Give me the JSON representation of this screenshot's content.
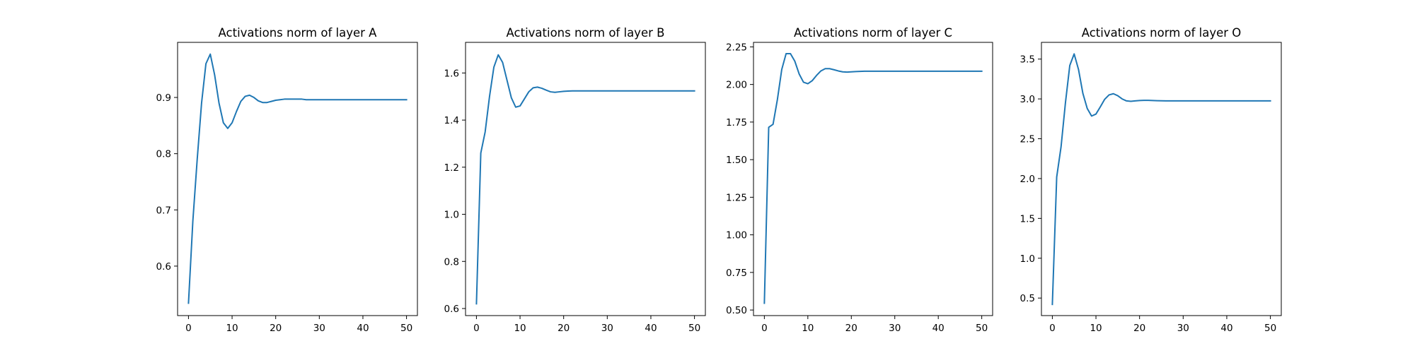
{
  "chart_data": [
    {
      "type": "line",
      "title": "Activations norm of layer A",
      "xlabel": "",
      "ylabel": "",
      "xlim": [
        -2.5,
        52.5
      ],
      "ylim": [
        0.512,
        0.998
      ],
      "xticks": [
        0,
        10,
        20,
        30,
        40,
        50
      ],
      "yticks": [
        0.6,
        0.7,
        0.8,
        0.9
      ],
      "ytick_labels": [
        "0.6",
        "0.7",
        "0.8",
        "0.9"
      ],
      "color": "#1f77b4",
      "series": [
        {
          "name": "layer A",
          "x": [
            0,
            1,
            2,
            3,
            4,
            5,
            6,
            7,
            8,
            9,
            10,
            11,
            12,
            13,
            14,
            15,
            16,
            17,
            18,
            19,
            20,
            21,
            22,
            23,
            24,
            25,
            26,
            27,
            28,
            29,
            30,
            31,
            32,
            33,
            34,
            35,
            36,
            37,
            38,
            39,
            40,
            41,
            42,
            43,
            44,
            45,
            46,
            47,
            48,
            49,
            50
          ],
          "values": [
            0.534,
            0.68,
            0.79,
            0.89,
            0.96,
            0.977,
            0.94,
            0.89,
            0.855,
            0.845,
            0.855,
            0.875,
            0.893,
            0.902,
            0.904,
            0.9,
            0.894,
            0.891,
            0.891,
            0.893,
            0.895,
            0.896,
            0.897,
            0.897,
            0.897,
            0.897,
            0.897,
            0.896,
            0.896,
            0.896,
            0.896,
            0.896,
            0.896,
            0.896,
            0.896,
            0.896,
            0.896,
            0.896,
            0.896,
            0.896,
            0.896,
            0.896,
            0.896,
            0.896,
            0.896,
            0.896,
            0.896,
            0.896,
            0.896,
            0.896,
            0.896
          ]
        }
      ]
    },
    {
      "type": "line",
      "title": "Activations norm of layer B",
      "xlabel": "",
      "ylabel": "",
      "xlim": [
        -2.5,
        52.5
      ],
      "ylim": [
        0.57,
        1.73
      ],
      "xticks": [
        0,
        10,
        20,
        30,
        40,
        50
      ],
      "yticks": [
        0.6,
        0.8,
        1.0,
        1.2,
        1.4,
        1.6
      ],
      "ytick_labels": [
        "0.6",
        "0.8",
        "1.0",
        "1.2",
        "1.4",
        "1.6"
      ],
      "color": "#1f77b4",
      "series": [
        {
          "name": "layer B",
          "x": [
            0,
            1,
            2,
            3,
            4,
            5,
            6,
            7,
            8,
            9,
            10,
            11,
            12,
            13,
            14,
            15,
            16,
            17,
            18,
            19,
            20,
            21,
            22,
            23,
            24,
            25,
            26,
            27,
            28,
            29,
            30,
            31,
            32,
            33,
            34,
            35,
            36,
            37,
            38,
            39,
            40,
            41,
            42,
            43,
            44,
            45,
            46,
            47,
            48,
            49,
            50
          ],
          "values": [
            0.62,
            1.26,
            1.35,
            1.5,
            1.625,
            1.677,
            1.645,
            1.57,
            1.495,
            1.455,
            1.46,
            1.49,
            1.52,
            1.537,
            1.54,
            1.535,
            1.527,
            1.52,
            1.518,
            1.52,
            1.522,
            1.523,
            1.524,
            1.524,
            1.524,
            1.524,
            1.524,
            1.524,
            1.524,
            1.524,
            1.524,
            1.524,
            1.524,
            1.524,
            1.524,
            1.524,
            1.524,
            1.524,
            1.524,
            1.524,
            1.524,
            1.524,
            1.524,
            1.524,
            1.524,
            1.524,
            1.524,
            1.524,
            1.524,
            1.524,
            1.524
          ]
        }
      ]
    },
    {
      "type": "line",
      "title": "Activations norm of layer C",
      "xlabel": "",
      "ylabel": "",
      "xlim": [
        -2.5,
        52.5
      ],
      "ylim": [
        0.463,
        2.28
      ],
      "xticks": [
        0,
        10,
        20,
        30,
        40,
        50
      ],
      "yticks": [
        0.5,
        0.75,
        1.0,
        1.25,
        1.5,
        1.75,
        2.0,
        2.25
      ],
      "ytick_labels": [
        "0.50",
        "0.75",
        "1.00",
        "1.25",
        "1.50",
        "1.75",
        "2.00",
        "2.25"
      ],
      "color": "#1f77b4",
      "series": [
        {
          "name": "layer C",
          "x": [
            0,
            1,
            2,
            3,
            4,
            5,
            6,
            7,
            8,
            9,
            10,
            11,
            12,
            13,
            14,
            15,
            16,
            17,
            18,
            19,
            20,
            21,
            22,
            23,
            24,
            25,
            26,
            27,
            28,
            29,
            30,
            31,
            32,
            33,
            34,
            35,
            36,
            37,
            38,
            39,
            40,
            41,
            42,
            43,
            44,
            45,
            46,
            47,
            48,
            49,
            50
          ],
          "values": [
            0.545,
            1.715,
            1.735,
            1.9,
            2.1,
            2.205,
            2.205,
            2.155,
            2.07,
            2.015,
            2.005,
            2.025,
            2.06,
            2.09,
            2.105,
            2.105,
            2.098,
            2.09,
            2.084,
            2.082,
            2.084,
            2.086,
            2.087,
            2.088,
            2.088,
            2.088,
            2.088,
            2.088,
            2.088,
            2.088,
            2.088,
            2.088,
            2.088,
            2.088,
            2.088,
            2.088,
            2.088,
            2.088,
            2.088,
            2.088,
            2.088,
            2.088,
            2.088,
            2.088,
            2.088,
            2.088,
            2.088,
            2.088,
            2.088,
            2.088,
            2.088
          ]
        }
      ]
    },
    {
      "type": "line",
      "title": "Activations norm of layer O",
      "xlabel": "",
      "ylabel": "",
      "xlim": [
        -2.5,
        52.5
      ],
      "ylim": [
        0.28,
        3.71
      ],
      "xticks": [
        0,
        10,
        20,
        30,
        40,
        50
      ],
      "yticks": [
        0.5,
        1.0,
        1.5,
        2.0,
        2.5,
        3.0,
        3.5
      ],
      "ytick_labels": [
        "0.5",
        "1.0",
        "1.5",
        "2.0",
        "2.5",
        "3.0",
        "3.5"
      ],
      "color": "#1f77b4",
      "series": [
        {
          "name": "layer O",
          "x": [
            0,
            1,
            2,
            3,
            4,
            5,
            6,
            7,
            8,
            9,
            10,
            11,
            12,
            13,
            14,
            15,
            16,
            17,
            18,
            19,
            20,
            21,
            22,
            23,
            24,
            25,
            26,
            27,
            28,
            29,
            30,
            31,
            32,
            33,
            34,
            35,
            36,
            37,
            38,
            39,
            40,
            41,
            42,
            43,
            44,
            45,
            46,
            47,
            48,
            49,
            50
          ],
          "values": [
            0.42,
            2.02,
            2.4,
            2.95,
            3.42,
            3.565,
            3.37,
            3.07,
            2.88,
            2.785,
            2.81,
            2.9,
            2.995,
            3.05,
            3.065,
            3.04,
            3.0,
            2.975,
            2.97,
            2.975,
            2.98,
            2.982,
            2.982,
            2.98,
            2.978,
            2.977,
            2.976,
            2.976,
            2.976,
            2.976,
            2.976,
            2.976,
            2.976,
            2.976,
            2.976,
            2.976,
            2.976,
            2.976,
            2.976,
            2.976,
            2.976,
            2.976,
            2.976,
            2.976,
            2.976,
            2.976,
            2.976,
            2.976,
            2.976,
            2.976,
            2.976
          ]
        }
      ]
    }
  ]
}
